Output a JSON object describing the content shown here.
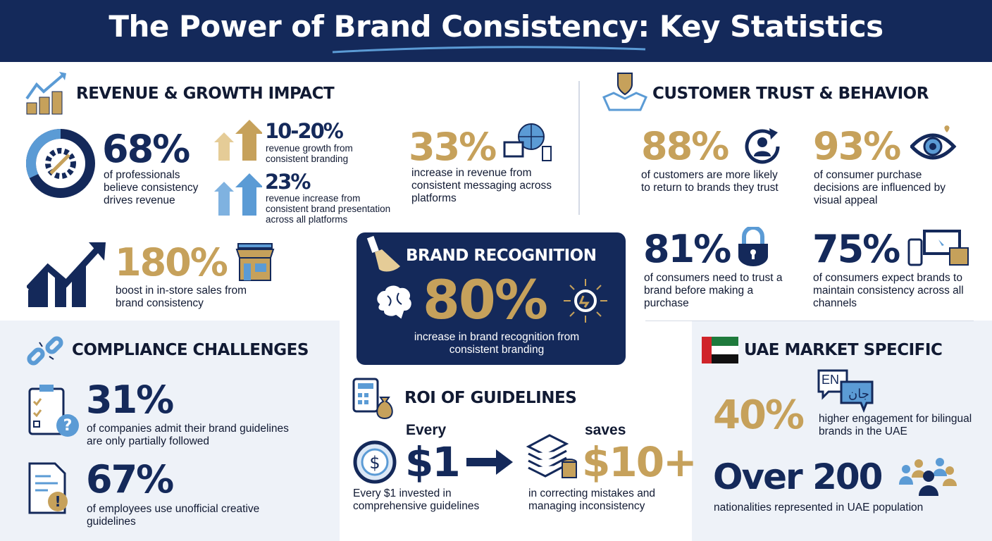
{
  "title": "The Power of Brand Consistency: Key Statistics",
  "colors": {
    "navy": "#14295a",
    "gold": "#c6a15b",
    "blue": "#5b9bd5",
    "panel": "#eef2f8"
  },
  "revenue": {
    "heading": "REVENUE & GROWTH IMPACT",
    "stat1": {
      "value": "68%",
      "text": "of professionals believe consistency drives revenue"
    },
    "stat2": {
      "value": "10-20%",
      "text": "revenue growth from consistent branding"
    },
    "stat3": {
      "value": "23%",
      "text": "revenue increase from consistent brand presentation across all platforms"
    },
    "stat4": {
      "value": "33%",
      "text": "increase in revenue from consistent messaging across platforms"
    },
    "stat5": {
      "value": "180%",
      "text": "boost in in-store sales from brand consistency"
    }
  },
  "trust": {
    "heading": "CUSTOMER TRUST & BEHAVIOR",
    "stat1": {
      "value": "88%",
      "text": "of customers are more likely to return to brands they trust"
    },
    "stat2": {
      "value": "93%",
      "text": "of consumer purchase decisions are influenced by visual appeal"
    },
    "stat3": {
      "value": "81%",
      "text": "of consumers need to trust a brand before making a purchase"
    },
    "stat4": {
      "value": "75%",
      "text": "of consumers expect brands to maintain consistency across all channels"
    }
  },
  "recognition": {
    "heading": "BRAND RECOGNITION",
    "value": "80%",
    "text": "increase in brand recognition from consistent branding"
  },
  "compliance": {
    "heading": "COMPLIANCE CHALLENGES",
    "stat1": {
      "value": "31%",
      "text": "of companies admit their brand guidelines are only partially followed"
    },
    "stat2": {
      "value": "67%",
      "text": "of employees use unofficial creative guidelines"
    }
  },
  "roi": {
    "heading": "ROI OF GUIDELINES",
    "every": "Every",
    "invest": "$1",
    "saves": "saves",
    "saved": "$10+",
    "left_text": "Every $1 invested in comprehensive guidelines",
    "right_text": "in correcting mistakes and managing inconsistency"
  },
  "uae": {
    "heading": "UAE MARKET SPECIFIC",
    "bubble_en": "EN",
    "bubble_ar": "جان",
    "stat1": {
      "value": "40%",
      "text": "higher engagement for bilingual brands in the UAE"
    },
    "stat2": {
      "value": "Over 200",
      "text": "nationalities represented in UAE population"
    }
  }
}
